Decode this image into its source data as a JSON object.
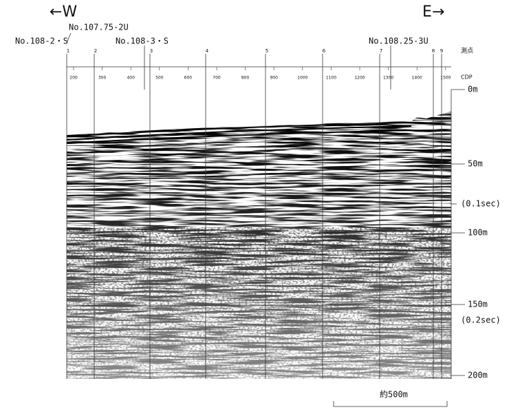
{
  "directions": {
    "west": "←W",
    "east": "E→"
  },
  "wells": [
    {
      "label": "No.107.75-2U"
    },
    {
      "label": "No.108-2・S"
    },
    {
      "label": "No.108-3・S"
    },
    {
      "label": "No.108.25-3U"
    }
  ],
  "stations": {
    "title": "測点",
    "labels": [
      "1",
      "2",
      "3",
      "4",
      "5",
      "6",
      "7",
      "8",
      "9"
    ]
  },
  "cdp": {
    "title": "CDP",
    "labels": [
      "200",
      "300",
      "400",
      "500",
      "600",
      "700",
      "800",
      "900",
      "1000",
      "1100",
      "1200",
      "1300",
      "1400",
      "1500"
    ]
  },
  "depth_labels": [
    "0m",
    "50m",
    "(0.1sec)",
    "100m",
    "150m",
    "(0.2sec)",
    "200m"
  ],
  "scale_label": "約500m"
}
